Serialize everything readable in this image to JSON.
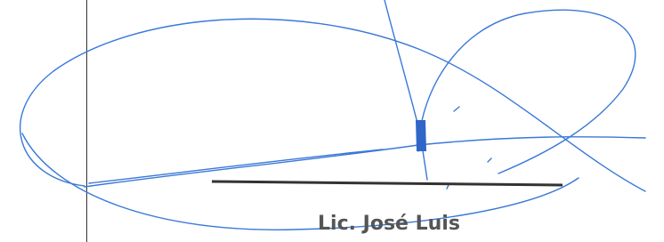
{
  "signature": {
    "name": "Lic. José Luis"
  }
}
